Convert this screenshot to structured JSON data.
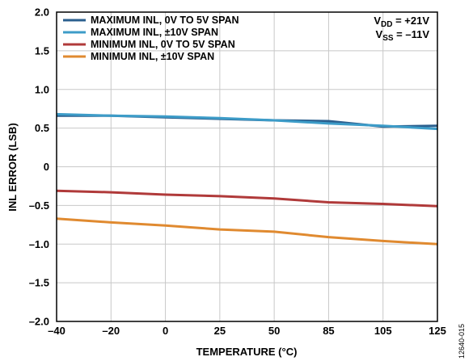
{
  "chart_data": {
    "type": "line",
    "title": "",
    "xlabel": "TEMPERATURE (°C)",
    "ylabel": "INL ERROR (LSB)",
    "categories": [
      "–40",
      "–20",
      "0",
      "25",
      "50",
      "85",
      "105",
      "125"
    ],
    "ylim": [
      -2.0,
      2.0
    ],
    "yticks": [
      2.0,
      1.5,
      1.0,
      0.5,
      0,
      -0.5,
      -1.0,
      -1.5,
      -2.0
    ],
    "ytick_labels": [
      "2.0",
      "1.5",
      "1.0",
      "0.5",
      "0",
      "–0.5",
      "–1.0",
      "–1.5",
      "–2.0"
    ],
    "grid": true,
    "legend_position": "top-left",
    "series": [
      {
        "name": "MAXIMUM INL, 0V TO 5V SPAN",
        "color": "#2b5f8e",
        "values": [
          0.66,
          0.66,
          0.64,
          0.62,
          0.6,
          0.59,
          0.52,
          0.53
        ]
      },
      {
        "name": "MAXIMUM INL, ±10V SPAN",
        "color": "#3d9cc8",
        "values": [
          0.68,
          0.66,
          0.65,
          0.63,
          0.6,
          0.56,
          0.53,
          0.49
        ]
      },
      {
        "name": "MINIMUM INL, 0V TO 5V SPAN",
        "color": "#b03a3a",
        "values": [
          -0.31,
          -0.33,
          -0.36,
          -0.38,
          -0.41,
          -0.46,
          -0.48,
          -0.51
        ]
      },
      {
        "name": "MINIMUM INL, ±10V SPAN",
        "color": "#e08a30",
        "values": [
          -0.67,
          -0.72,
          -0.76,
          -0.81,
          -0.84,
          -0.91,
          -0.96,
          -1.0
        ]
      }
    ],
    "annotations": {
      "vdd_main": "V",
      "vdd_sub": "DD",
      "vdd_value": " = +21V",
      "vss_main": "V",
      "vss_sub": "SS",
      "vss_value": " = –11V"
    },
    "figure_id": "12640-015"
  }
}
